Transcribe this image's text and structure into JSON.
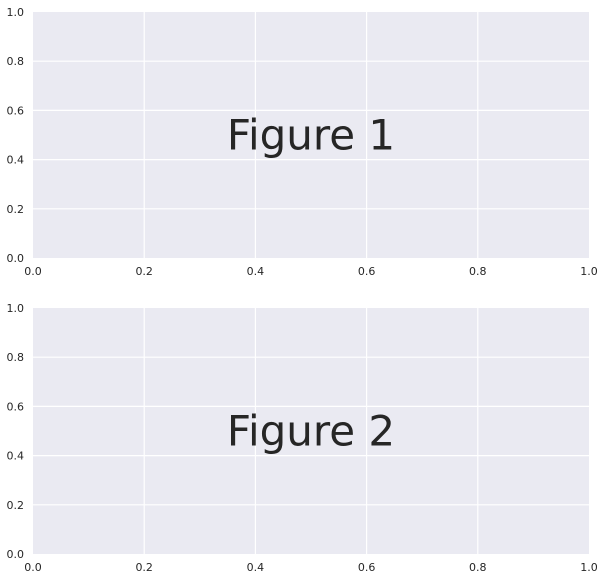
{
  "colors": {
    "axes_background": "#EAEAF2",
    "grid": "#FFFFFF",
    "text": "#262626"
  },
  "chart_data": [
    {
      "type": "line",
      "series": [],
      "title": "",
      "xlabel": "",
      "ylabel": "",
      "xlim": [
        0,
        1
      ],
      "ylim": [
        0,
        1
      ],
      "xticks": [
        "0.0",
        "0.2",
        "0.4",
        "0.6",
        "0.8",
        "1.0"
      ],
      "yticks": [
        "0.0",
        "0.2",
        "0.4",
        "0.6",
        "0.8",
        "1.0"
      ],
      "grid": true,
      "annotations": [
        {
          "text": "Figure 1",
          "x": 0.5,
          "y": 0.5
        }
      ]
    },
    {
      "type": "line",
      "series": [],
      "title": "",
      "xlabel": "",
      "ylabel": "",
      "xlim": [
        0,
        1
      ],
      "ylim": [
        0,
        1
      ],
      "xticks": [
        "0.0",
        "0.2",
        "0.4",
        "0.6",
        "0.8",
        "1.0"
      ],
      "yticks": [
        "0.0",
        "0.2",
        "0.4",
        "0.6",
        "0.8",
        "1.0"
      ],
      "grid": true,
      "annotations": [
        {
          "text": "Figure 2",
          "x": 0.5,
          "y": 0.5
        }
      ]
    }
  ]
}
